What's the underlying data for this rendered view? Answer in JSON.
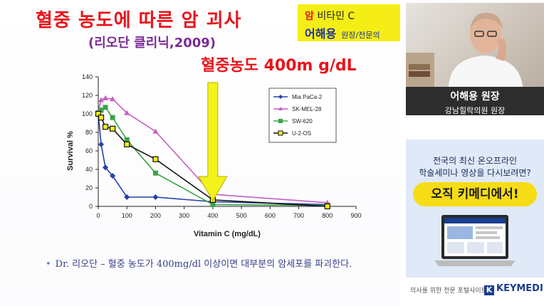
{
  "slide": {
    "title": "혈중 농도에 따른 암 괴사",
    "subtitle": "(리오단 클리닉,2009)",
    "concentration_label": "혈중농도 400m g/dL",
    "bullet": "Dr. 리오단 – 혈중 농도가 400mg/dl 이상이면 대부분의 암세포를 파괴한다."
  },
  "brand_box": {
    "line1_red": "암",
    "line1": "비타민 C",
    "name": "어해용",
    "role": "원장/전문의"
  },
  "sidebar": {
    "presenter_name": "어해용 원장",
    "presenter_affiliation": "강남힐락의원 원장",
    "ad_line1": "전국의 최신 온오프라인",
    "ad_line2": "학술세미나 영상을 다시보려면?",
    "ad_button": "오직 키메디에서!",
    "footer_text": "의사를 위한 전문 포털사이트",
    "footer_logo": "KEYMEDI"
  },
  "colors": {
    "title_red": "#e8141b",
    "subtitle_purple": "#7b2b96",
    "brand_yellow": "#f5ee16",
    "arrow_yellow": "#f3f21a",
    "series_blue": "#2540a8",
    "series_pink": "#c45fc2",
    "series_green": "#3aa34a",
    "series_yellow": "#f2f21a"
  },
  "chart_data": {
    "type": "line",
    "xlabel": "Vitamin C (mg/dL)",
    "ylabel": "Survival %",
    "xlim": [
      0,
      900
    ],
    "ylim": [
      0,
      140
    ],
    "x_ticks": [
      0,
      100,
      200,
      300,
      400,
      500,
      600,
      700,
      800,
      900
    ],
    "y_ticks": [
      0,
      20,
      40,
      60,
      80,
      100,
      120,
      140
    ],
    "grid": false,
    "legend_position": "top-right",
    "series": [
      {
        "name": "Mia PaCa-2",
        "color_key": "series_blue",
        "marker": "diamond",
        "x": [
          0,
          10,
          25,
          50,
          100,
          200,
          400,
          800
        ],
        "y": [
          100,
          67,
          42,
          33,
          10,
          10,
          5,
          2
        ]
      },
      {
        "name": "SK-MEL-28",
        "color_key": "series_pink",
        "marker": "triangle",
        "x": [
          0,
          10,
          25,
          50,
          100,
          200,
          400,
          800
        ],
        "y": [
          103,
          115,
          117,
          116,
          101,
          81,
          13,
          4
        ]
      },
      {
        "name": "SW-620",
        "color_key": "series_green",
        "marker": "square",
        "x": [
          0,
          10,
          25,
          50,
          100,
          200,
          400,
          800
        ],
        "y": [
          101,
          104,
          107,
          96,
          72,
          36,
          2,
          1
        ]
      },
      {
        "name": "U-2-OS",
        "color_key": "series_yellow",
        "marker": "square-open",
        "x": [
          0,
          10,
          25,
          50,
          100,
          200,
          400,
          800
        ],
        "y": [
          100,
          96,
          86,
          84,
          67,
          51,
          7,
          0
        ]
      }
    ],
    "annotation": {
      "type": "arrow",
      "x": 400,
      "color_key": "arrow_yellow"
    }
  }
}
